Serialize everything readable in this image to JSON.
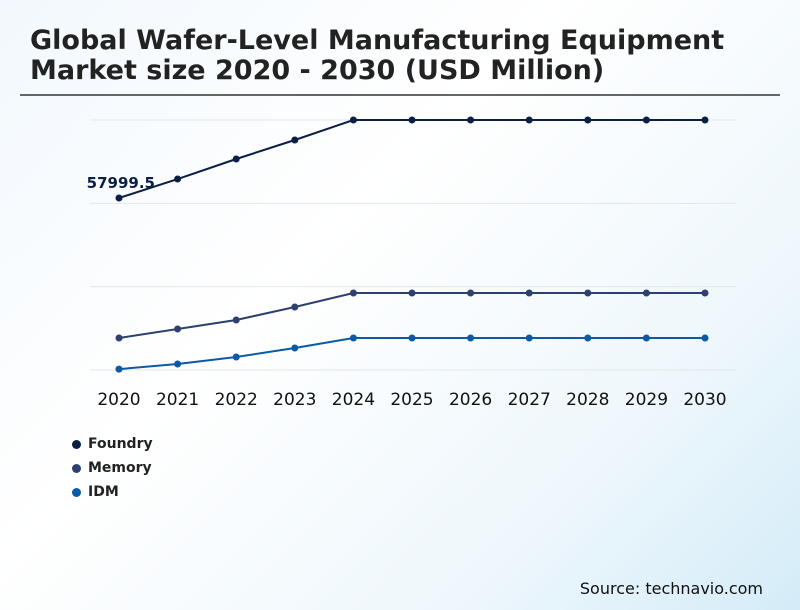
{
  "chart_data": {
    "type": "line",
    "title": "Global Wafer-Level Manufacturing Equipment Market size 2020 - 2030 (USD Million)",
    "categories": [
      "2020",
      "2021",
      "2022",
      "2023",
      "2024",
      "2025",
      "2026",
      "2027",
      "2028",
      "2029",
      "2030"
    ],
    "ylim": [
      0,
      84300
    ],
    "grid": true,
    "legend_position": "bottom-left",
    "series": [
      {
        "name": "Foundry",
        "color": "#0b1f45",
        "values": [
          57999.5,
          64400,
          71150,
          77560,
          84300,
          84300,
          84300,
          84300,
          84300,
          84300,
          84300
        ]
      },
      {
        "name": "Memory",
        "color": "#2e3f70",
        "values": [
          10790,
          13830,
          16860,
          21240,
          25960,
          25960,
          25960,
          25960,
          25960,
          25960,
          25960
        ]
      },
      {
        "name": "IDM",
        "color": "#0a5aa8",
        "values": [
          300,
          2020,
          4380,
          7420,
          10790,
          10790,
          10790,
          10790,
          10790,
          10790,
          10790
        ]
      }
    ],
    "annotations": [
      {
        "series": "Foundry",
        "category": "2020",
        "text": "57999.5"
      }
    ]
  },
  "source": "Source: technavio.com"
}
